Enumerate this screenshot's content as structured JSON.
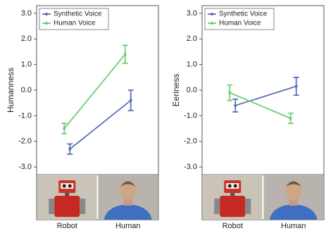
{
  "chart_data": [
    {
      "type": "line",
      "ylabel": "Humanness",
      "categories": [
        "Robot",
        "Human"
      ],
      "series": [
        {
          "name": "Synthetic Voice",
          "color": "#5b6fb5",
          "values": [
            -2.3,
            -0.4
          ],
          "errors": [
            0.2,
            0.4
          ]
        },
        {
          "name": "Human Voice",
          "color": "#6ccf78",
          "values": [
            -1.5,
            1.4
          ],
          "errors": [
            0.2,
            0.35
          ]
        }
      ],
      "ylim": [
        -3.3,
        3.3
      ],
      "yticks": [
        {
          "value": 3,
          "label": "3.0"
        },
        {
          "value": 2,
          "label": "2.0"
        },
        {
          "value": 1,
          "label": "1.0"
        },
        {
          "value": 0,
          "label": "0.0"
        },
        {
          "value": -1,
          "label": "-1.0"
        },
        {
          "value": -2,
          "label": "-2.0"
        },
        {
          "value": -3,
          "label": "-3.0"
        }
      ],
      "legend": "upper left"
    },
    {
      "type": "line",
      "ylabel": "Eeriness",
      "categories": [
        "Robot",
        "Human"
      ],
      "series": [
        {
          "name": "Synthetic Voice",
          "color": "#5b6fb5",
          "values": [
            -0.6,
            0.15
          ],
          "errors": [
            0.25,
            0.35
          ]
        },
        {
          "name": "Human Voice",
          "color": "#6ccf78",
          "values": [
            -0.1,
            -1.1
          ],
          "errors": [
            0.3,
            0.2
          ]
        }
      ],
      "ylim": [
        -3.3,
        3.3
      ],
      "yticks": [
        {
          "value": 3,
          "label": "3.0"
        },
        {
          "value": 2,
          "label": "2.0"
        },
        {
          "value": 1,
          "label": "1.0"
        },
        {
          "value": 0,
          "label": "0.0"
        },
        {
          "value": -1,
          "label": "-1.0"
        },
        {
          "value": -2,
          "label": "-2.0"
        },
        {
          "value": -3,
          "label": "-3.0"
        }
      ],
      "legend": "upper left"
    }
  ]
}
